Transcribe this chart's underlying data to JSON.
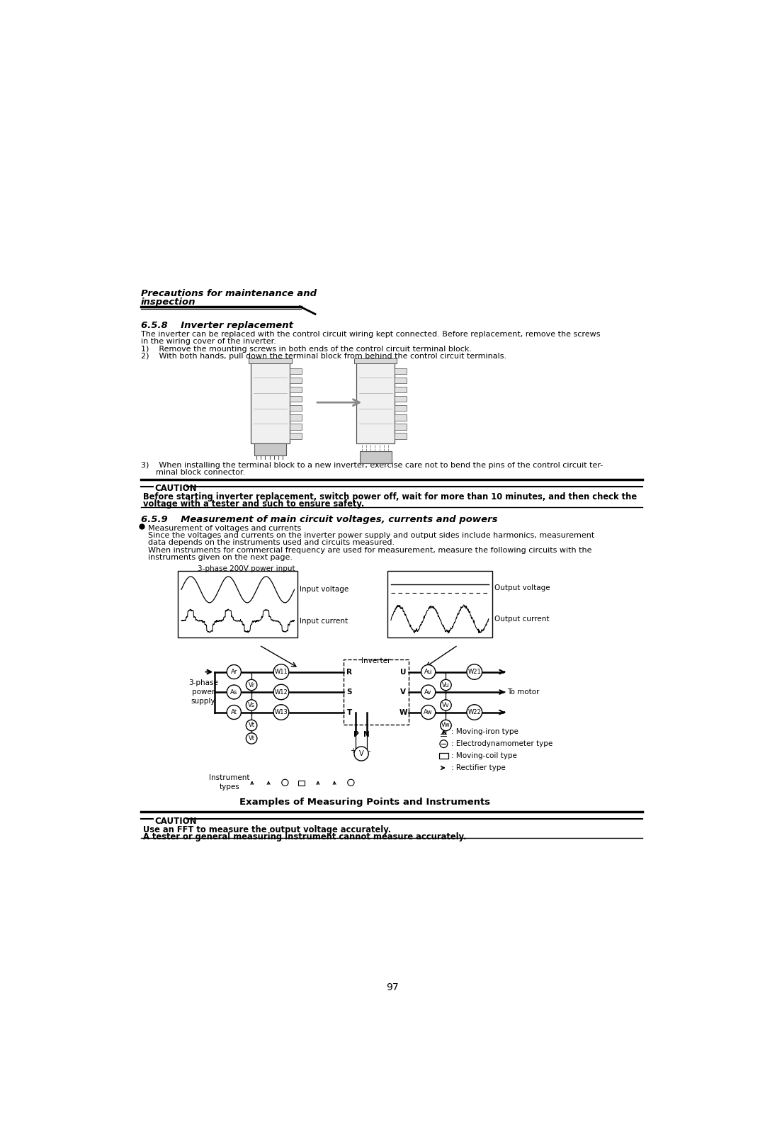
{
  "bg_color": "#ffffff",
  "page_number": "97",
  "header_line1": "Precautions for maintenance and",
  "header_line2": "inspection",
  "s658_title": "6.5.8    Inverter replacement",
  "para1": "The inverter can be replaced with the control circuit wiring kept connected. Before replacement, remove the screws",
  "para2": "in the wiring cover of the inverter.",
  "list1": "1)    Remove the mounting screws in both ends of the control circuit terminal block.",
  "list2": "2)    With both hands, pull down the terminal block from behind the control circuit terminals.",
  "item3a": "3)    When installing the terminal block to a new inverter, exercise care not to bend the pins of the control circuit ter-",
  "item3b": "      minal block connector.",
  "caut1_title": "CAUTION",
  "caut1_text1": "Before starting inverter replacement, switch power off, wait for more than 10 minutes, and then check the",
  "caut1_text2": "voltage with a tester and such to ensure safety.",
  "s659_title": "6.5.9    Measurement of main circuit voltages, currents and powers",
  "bullet_hdr": "Measurement of voltages and currents",
  "bp1": "Since the voltages and currents on the inverter power supply and output sides include harmonics, measurement",
  "bp2": "data depends on the instruments used and circuits measured.",
  "bp3": "When instruments for commercial frequency are used for measurement, measure the following circuits with the",
  "bp4": "instruments given on the next page.",
  "lbl_3phase_top": "3-phase 200V power input",
  "lbl_input_v": "Input voltage",
  "lbl_input_c": "Input current",
  "lbl_output_v": "Output voltage",
  "lbl_output_c": "Output current",
  "lbl_inverter": "Inverter",
  "lbl_3ps": "3-phase\npower\nsupply",
  "lbl_motor": "To motor",
  "leg1": ": Moving-iron type",
  "leg2": ": Electrodynamometer type",
  "leg3": ": Moving-coil type",
  "leg4": ": Rectifier type",
  "lbl_inst": "Instrument\ntypes",
  "caption": "Examples of Measuring Points and Instruments",
  "caut2_title": "CAUTION",
  "caut2_text1": "Use an FFT to measure the output voltage accurately.",
  "caut2_text2": "A tester or general measuring instrument cannot measure accurately."
}
